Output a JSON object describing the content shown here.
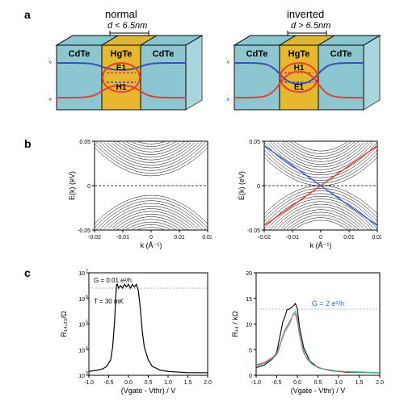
{
  "panel_labels": {
    "a": "a",
    "b": "b",
    "c": "c"
  },
  "headers": {
    "left": "normal",
    "right": "inverted"
  },
  "d_cond": {
    "left": "d < 6.5nm",
    "right": "d > 6.5nm"
  },
  "slab": {
    "outer_color": "#86c5cf",
    "inner_color": "#e6b422",
    "edge_color": "#000000",
    "layers": [
      "CdTe",
      "HgTe",
      "CdTe"
    ],
    "gamma6": "Γ₆",
    "gamma8": "Γ₈",
    "normal_order": {
      "top": "E1",
      "bottom": "H1"
    },
    "inverted_order": {
      "top": "H1",
      "bottom": "E1"
    },
    "e_curve_color": "#e93f33",
    "h_curve_color": "#3a4db8",
    "label_fontsize": 11
  },
  "bands": {
    "xlim": [
      -0.02,
      0.02
    ],
    "ylim": [
      -0.05,
      0.05
    ],
    "xticks": [
      -0.02,
      -0.01,
      0,
      0.01,
      0.02
    ],
    "yticks": [
      -0.05,
      0,
      0.05
    ],
    "xlabel": "k (Å⁻¹)",
    "ylabel": "E(k) (eV)",
    "band_color": "#000000",
    "edge_color_up": "#e93f33",
    "edge_color_down": "#395fd6",
    "grid_color": "#ffffff",
    "normal_gap": 0.011,
    "inverted_gap": 0.0
  },
  "transport_left": {
    "type": "line",
    "ylabel": "R₁₄,₂₃/Ω",
    "xlabel": "(Vgate - Vthr) / V",
    "xlim": [
      -1.0,
      2.0
    ],
    "xticks": [
      -1.0,
      -0.5,
      0,
      0.5,
      1.0,
      1.5,
      2.0
    ],
    "ylog": true,
    "ylim_exp": [
      3,
      7
    ],
    "ytick_exp": [
      3,
      4,
      5,
      6,
      7
    ],
    "annotations": {
      "G": "G = 0.01 e²/h",
      "T": "T = 30 mK"
    },
    "line_color": "#000000",
    "data_x": [
      -1.0,
      -0.8,
      -0.65,
      -0.55,
      -0.45,
      -0.4,
      -0.35,
      -0.32,
      -0.3,
      -0.28,
      -0.25,
      -0.2,
      -0.15,
      -0.1,
      -0.05,
      0,
      0.05,
      0.1,
      0.15,
      0.2,
      0.25,
      0.3,
      0.35,
      0.4,
      0.5,
      0.6,
      0.8,
      1.0,
      1.5,
      2.0
    ],
    "data_y": [
      3.15,
      3.2,
      3.25,
      3.35,
      3.6,
      4.1,
      5.1,
      6.1,
      6.55,
      6.55,
      6.4,
      6.5,
      6.4,
      6.55,
      6.45,
      6.55,
      6.4,
      6.55,
      6.45,
      6.55,
      6.3,
      5.6,
      4.7,
      4.1,
      3.6,
      3.35,
      3.2,
      3.15,
      3.1,
      3.1
    ]
  },
  "transport_right": {
    "type": "line",
    "ylabel": "R₁₄ / kΩ",
    "xlabel": "(Vgate - Vthr) / V",
    "xlim": [
      -1.0,
      2.0
    ],
    "xticks": [
      -1.0,
      -0.5,
      0,
      0.5,
      1.0,
      1.5,
      2.0
    ],
    "ylog": false,
    "ylim": [
      0,
      20
    ],
    "yticks": [
      0,
      5,
      10,
      15,
      20
    ],
    "annotation_G": "G = 2 e²/h",
    "annotation_color": "#395fd6",
    "ref_y": 12.9,
    "ref_color": "#aaaaaa",
    "traces": [
      {
        "color": "#000000",
        "x": [
          -1.0,
          -0.8,
          -0.6,
          -0.5,
          -0.45,
          -0.4,
          -0.35,
          -0.3,
          -0.25,
          -0.2,
          -0.15,
          -0.1,
          -0.05,
          0,
          0.05,
          0.15,
          0.3,
          0.5,
          0.8,
          1.2,
          2.0
        ],
        "y": [
          1.5,
          2.0,
          3.2,
          4.5,
          6.5,
          8.5,
          10.5,
          11.5,
          12.8,
          12.9,
          13.2,
          13.5,
          14.0,
          13.0,
          9.5,
          5.5,
          2.8,
          1.5,
          0.9,
          0.6,
          0.5
        ]
      },
      {
        "color": "#ee3a8c",
        "x": [
          -1.0,
          -0.8,
          -0.6,
          -0.5,
          -0.45,
          -0.4,
          -0.35,
          -0.3,
          -0.25,
          -0.2,
          -0.15,
          -0.1,
          -0.05,
          0,
          0.05,
          0.1,
          0.15,
          0.25,
          0.4,
          0.6,
          1.0,
          2.0
        ],
        "y": [
          2.0,
          2.5,
          3.5,
          4.3,
          5.3,
          6.5,
          7.8,
          8.8,
          9.6,
          10.3,
          11.0,
          11.8,
          12.0,
          10.5,
          8.0,
          6.0,
          4.5,
          3.0,
          2.0,
          1.3,
          0.8,
          0.5
        ]
      },
      {
        "color": "#39c06a",
        "x": [
          -1.0,
          -0.8,
          -0.6,
          -0.5,
          -0.45,
          -0.4,
          -0.35,
          -0.3,
          -0.25,
          -0.2,
          -0.15,
          -0.1,
          -0.05,
          0,
          0.05,
          0.1,
          0.2,
          0.35,
          0.5,
          0.8,
          1.5,
          2.0
        ],
        "y": [
          1.8,
          2.3,
          3.3,
          4.0,
          5.0,
          6.3,
          7.5,
          8.5,
          9.2,
          9.8,
          10.8,
          12.0,
          12.5,
          11.4,
          8.5,
          6.2,
          3.8,
          2.2,
          1.5,
          0.9,
          0.55,
          0.5
        ]
      }
    ]
  }
}
